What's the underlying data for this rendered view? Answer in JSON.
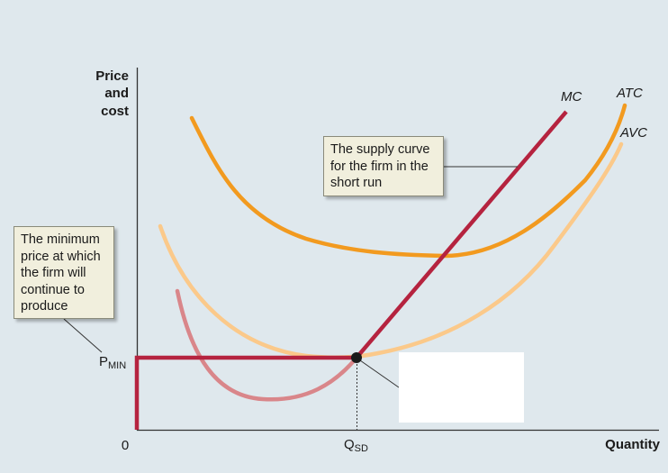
{
  "y_axis": {
    "title_lines": [
      "Price",
      "and",
      "cost"
    ]
  },
  "x_axis": {
    "title": "Quantity",
    "origin_label": "0"
  },
  "ticks": {
    "p_min": {
      "main": "P",
      "sub": "MIN"
    },
    "q_sd": {
      "main": "Q",
      "sub": "SD"
    }
  },
  "curves": {
    "mc": {
      "label": "MC",
      "color": "#b5233f"
    },
    "atc": {
      "label": "ATC",
      "color": "#f29a1f"
    },
    "avc": {
      "label": "AVC",
      "color": "#fbc98a"
    },
    "mc_lower": {
      "color": "#d9868a"
    },
    "supply": {
      "color": "#b5233f"
    }
  },
  "annotations": {
    "supply_note": {
      "lines": [
        "The supply curve",
        "for the firm in the",
        "short run"
      ]
    },
    "min_price_note": {
      "lines": [
        "The minimum",
        "price at which",
        "the firm will",
        "continue to",
        "produce"
      ]
    }
  }
}
